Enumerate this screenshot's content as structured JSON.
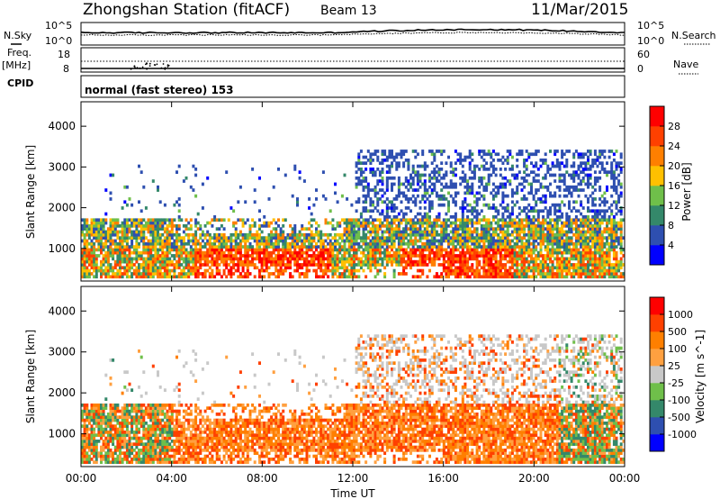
{
  "header": {
    "station": "Zhongshan Station (fitACF)",
    "beam": "Beam 13",
    "date": "11/Mar/2015"
  },
  "panels": {
    "noise": {
      "left_label": "N.Sky",
      "left_ticks": [
        "10^5",
        "10^0"
      ],
      "right_ticks": [
        "10^5",
        "10^0"
      ],
      "right_label": "N.Search"
    },
    "freq": {
      "left_label_1": "Freq.",
      "left_label_2": "[MHz]",
      "left_ticks": [
        "18",
        "8"
      ],
      "right_ticks": [
        "60",
        "0"
      ],
      "right_label": "Nave"
    },
    "cpid": {
      "label": "CPID",
      "text": "normal (fast stereo) 153"
    }
  },
  "colors": {
    "power_scale": [
      "#0000ff",
      "#2e4fb0",
      "#34886a",
      "#6fbf4a",
      "#ffc000",
      "#ff7f00",
      "#ff4000",
      "#ff0000"
    ],
    "velocity_scale": [
      "#ff0000",
      "#ff4000",
      "#ff7f00",
      "#ffa040",
      "#c8c8c8",
      "#6fbf4a",
      "#34886a",
      "#2e4fb0",
      "#0000ff"
    ]
  },
  "chart_data": [
    {
      "type": "heatmap",
      "name": "power",
      "ylabel": "Slant Range [km]",
      "yticks": [
        1000,
        2000,
        3000,
        4000
      ],
      "ylim": [
        200,
        4600
      ],
      "xlabel": "",
      "xticks": [
        "00:00",
        "04:00",
        "08:00",
        "12:00",
        "16:00",
        "20:00",
        "00:00"
      ],
      "xlim_hours": [
        0,
        24
      ],
      "colorbar_label": "Power [dB]",
      "colorbar_ticks": [
        "4",
        "8",
        "12",
        "16",
        "20",
        "24",
        "28"
      ]
    },
    {
      "type": "heatmap",
      "name": "velocity",
      "ylabel": "Slant Range [km]",
      "yticks": [
        1000,
        2000,
        3000,
        4000
      ],
      "ylim": [
        200,
        4600
      ],
      "xlabel": "Time UT",
      "xticks": [
        "00:00",
        "04:00",
        "08:00",
        "12:00",
        "16:00",
        "20:00",
        "00:00"
      ],
      "xlim_hours": [
        0,
        24
      ],
      "colorbar_label": "Velocity [m s^-1]",
      "colorbar_ticks": [
        "1000",
        "500",
        "100",
        "25",
        "-25",
        "-100",
        "-500",
        "-1000"
      ]
    }
  ]
}
